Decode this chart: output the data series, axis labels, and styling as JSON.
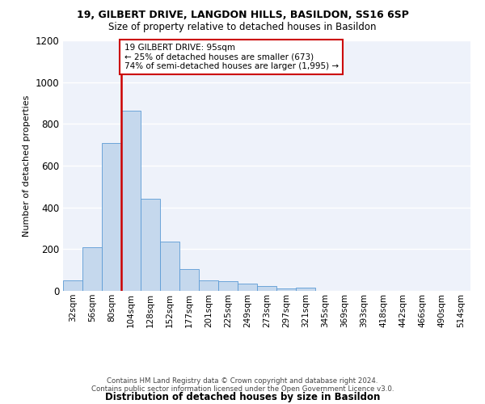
{
  "title_line1": "19, GILBERT DRIVE, LANGDON HILLS, BASILDON, SS16 6SP",
  "title_line2": "Size of property relative to detached houses in Basildon",
  "xlabel": "Distribution of detached houses by size in Basildon",
  "ylabel": "Number of detached properties",
  "footer_line1": "Contains HM Land Registry data © Crown copyright and database right 2024.",
  "footer_line2": "Contains public sector information licensed under the Open Government Licence v3.0.",
  "categories": [
    "32sqm",
    "56sqm",
    "80sqm",
    "104sqm",
    "128sqm",
    "152sqm",
    "177sqm",
    "201sqm",
    "225sqm",
    "249sqm",
    "273sqm",
    "297sqm",
    "321sqm",
    "345sqm",
    "369sqm",
    "393sqm",
    "418sqm",
    "442sqm",
    "466sqm",
    "490sqm",
    "514sqm"
  ],
  "values": [
    50,
    210,
    710,
    865,
    440,
    235,
    105,
    50,
    45,
    35,
    25,
    10,
    15,
    0,
    0,
    0,
    0,
    0,
    0,
    0,
    0
  ],
  "bar_color": "#c5d8ed",
  "bar_edge_color": "#5b9bd5",
  "background_color": "#ffffff",
  "plot_bg_color": "#eef2fa",
  "grid_color": "#ffffff",
  "property_line_color": "#cc0000",
  "annotation_text": "19 GILBERT DRIVE: 95sqm\n← 25% of detached houses are smaller (673)\n74% of semi-detached houses are larger (1,995) →",
  "annotation_box_color": "#ffffff",
  "annotation_box_edge": "#cc0000",
  "ylim": [
    0,
    1200
  ],
  "yticks": [
    0,
    200,
    400,
    600,
    800,
    1000,
    1200
  ],
  "title1_fontsize": 9.0,
  "title2_fontsize": 8.5,
  "ylabel_fontsize": 8.0,
  "xlabel_fontsize": 8.5,
  "footer_fontsize": 6.2,
  "tick_fontsize": 7.5,
  "ann_fontsize": 7.5
}
